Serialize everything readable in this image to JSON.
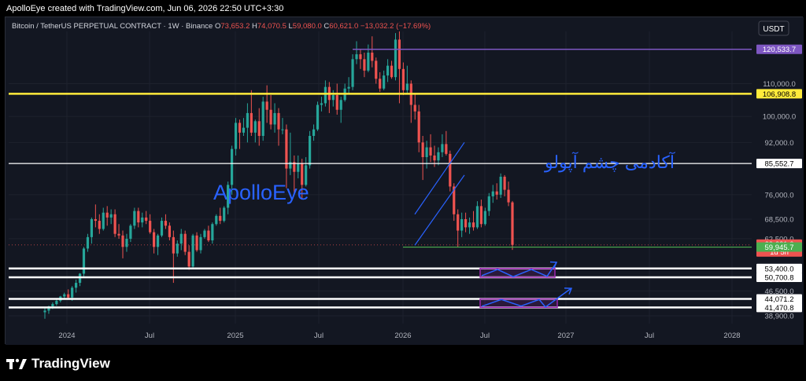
{
  "header": {
    "text": "ApolloEye created with TradingView.com, Jun 06, 2026 22:50 UTC+3:30"
  },
  "legend": {
    "symbol": "Bitcoin / TetherUS PERPETUAL CONTRACT · 1W · Binance",
    "open_label": "O",
    "open": "73,653.2",
    "high_label": "H",
    "high": "74,070.5",
    "low_label": "L",
    "low": "59,080.0",
    "close_label": "C",
    "close": "60,621.0",
    "change": "−13,032.2 (−17.69%)"
  },
  "currency_button": "USDT",
  "footer": {
    "brand": "TradingView"
  },
  "colors": {
    "bg": "#131722",
    "up": "#26a69a",
    "down": "#ef5350",
    "purple": "#7e57c2",
    "yellow": "#ffeb3b",
    "green": "#4caf50",
    "blue": "#2962ff",
    "grid": "#1e222d"
  },
  "chart_data": {
    "type": "candlestick",
    "ylim": [
      36500,
      126000
    ],
    "y_ticks": [
      "110,000.0",
      "100,000.0",
      "92,000.0",
      "76,000.0",
      "68,500.0",
      "62,500.0",
      "46,500.0",
      "38,900.0"
    ],
    "x_ticks": [
      "2024",
      "Jul",
      "2025",
      "Jul",
      "2026",
      "Jul",
      "2027",
      "Jul",
      "2028"
    ],
    "price_labels": [
      {
        "value": "120,533.7",
        "kind": "purple"
      },
      {
        "value": "106,908.8",
        "kind": "yellow"
      },
      {
        "value": "85,552.7",
        "kind": "white"
      },
      {
        "value": "60,621.0",
        "kind": "red",
        "sub": "1d 5h"
      },
      {
        "value": "59,945.7",
        "kind": "green"
      },
      {
        "value": "53,400.0",
        "kind": "white"
      },
      {
        "value": "50,700.8",
        "kind": "white"
      },
      {
        "value": "44,071.2",
        "kind": "white"
      },
      {
        "value": "41,470.8",
        "kind": "white"
      }
    ],
    "horizontal_levels": [
      {
        "value": 120533.7,
        "kind": "purple"
      },
      {
        "value": 106908.8,
        "kind": "yellow"
      },
      {
        "value": 85552.7,
        "kind": "white"
      },
      {
        "value": 59945.7,
        "kind": "green"
      },
      {
        "value": 53400.0,
        "kind": "white"
      },
      {
        "value": 50700.8,
        "kind": "white"
      },
      {
        "value": 44071.2,
        "kind": "white"
      },
      {
        "value": 41470.8,
        "kind": "white"
      }
    ],
    "ohlc_weekly": [
      [
        40000,
        41500,
        38000,
        40500
      ],
      [
        40500,
        42000,
        39500,
        41800
      ],
      [
        41800,
        43000,
        41000,
        42500
      ],
      [
        42500,
        44000,
        42000,
        43500
      ],
      [
        43500,
        45000,
        43000,
        44800
      ],
      [
        44800,
        46000,
        44000,
        45500
      ],
      [
        45500,
        47000,
        44000,
        44500
      ],
      [
        44500,
        48000,
        43500,
        47500
      ],
      [
        47500,
        50000,
        46000,
        49000
      ],
      [
        49000,
        52000,
        48000,
        51800
      ],
      [
        51800,
        60000,
        51000,
        59500
      ],
      [
        59500,
        64000,
        58500,
        63000
      ],
      [
        63000,
        69000,
        61000,
        68500
      ],
      [
        68500,
        73000,
        66000,
        68000
      ],
      [
        68000,
        70000,
        64000,
        65500
      ],
      [
        65500,
        72000,
        65000,
        70500
      ],
      [
        70500,
        72500,
        66500,
        69000
      ],
      [
        69000,
        71500,
        67000,
        70000
      ],
      [
        70000,
        71500,
        63000,
        64000
      ],
      [
        64000,
        67000,
        62500,
        63500
      ],
      [
        63500,
        65000,
        56500,
        60000
      ],
      [
        60000,
        64000,
        58500,
        62500
      ],
      [
        62500,
        67000,
        61500,
        66500
      ],
      [
        66500,
        72000,
        65500,
        71000
      ],
      [
        71000,
        72000,
        66000,
        67500
      ],
      [
        67500,
        70500,
        66000,
        69000
      ],
      [
        69000,
        71000,
        67000,
        68000
      ],
      [
        68000,
        70000,
        64000,
        64500
      ],
      [
        64500,
        65500,
        58000,
        60000
      ],
      [
        60000,
        64000,
        57500,
        63500
      ],
      [
        63500,
        69000,
        63000,
        68000
      ],
      [
        68000,
        70000,
        65500,
        66500
      ],
      [
        66500,
        67500,
        62000,
        63000
      ],
      [
        63000,
        65000,
        49000,
        58000
      ],
      [
        58000,
        62000,
        57000,
        61000
      ],
      [
        61000,
        65500,
        59000,
        64000
      ],
      [
        64000,
        65000,
        57500,
        58500
      ],
      [
        58500,
        60500,
        53000,
        54000
      ],
      [
        54000,
        64000,
        53500,
        63500
      ],
      [
        63500,
        64500,
        58500,
        59000
      ],
      [
        59000,
        64000,
        58000,
        63000
      ],
      [
        63000,
        65500,
        62500,
        65000
      ],
      [
        65000,
        66500,
        61500,
        62000
      ],
      [
        62000,
        67500,
        61000,
        67000
      ],
      [
        67000,
        70000,
        66500,
        69500
      ],
      [
        69500,
        72000,
        67000,
        68000
      ],
      [
        68000,
        72500,
        67500,
        72000
      ],
      [
        72000,
        80000,
        70000,
        79000
      ],
      [
        79000,
        91000,
        76000,
        90000
      ],
      [
        90000,
        99500,
        88000,
        98000
      ],
      [
        98000,
        99000,
        90000,
        95000
      ],
      [
        95000,
        99500,
        94000,
        96500
      ],
      [
        96500,
        104000,
        92000,
        101000
      ],
      [
        101000,
        108000,
        94000,
        95000
      ],
      [
        95000,
        99000,
        92000,
        98500
      ],
      [
        98500,
        102500,
        91000,
        94000
      ],
      [
        94000,
        106000,
        92500,
        104500
      ],
      [
        104500,
        109500,
        98000,
        102000
      ],
      [
        102000,
        106500,
        96000,
        97500
      ],
      [
        97500,
        104000,
        95000,
        101000
      ],
      [
        101000,
        102500,
        91000,
        96000
      ],
      [
        96000,
        99500,
        94500,
        96000
      ],
      [
        96000,
        97500,
        78000,
        84000
      ],
      [
        84000,
        95000,
        82000,
        86000
      ],
      [
        86000,
        88000,
        76500,
        83000
      ],
      [
        83000,
        88000,
        81000,
        85500
      ],
      [
        85500,
        87000,
        74500,
        79000
      ],
      [
        79000,
        87500,
        78500,
        85000
      ],
      [
        85000,
        95500,
        84000,
        94000
      ],
      [
        94000,
        97500,
        92500,
        96000
      ],
      [
        96000,
        104500,
        95500,
        103500
      ],
      [
        103500,
        106000,
        101500,
        104000
      ],
      [
        104000,
        111000,
        103000,
        109000
      ],
      [
        109000,
        110500,
        101000,
        105000
      ],
      [
        105000,
        108000,
        103000,
        106500
      ],
      [
        106500,
        110000,
        100500,
        102000
      ],
      [
        102000,
        106000,
        98000,
        105000
      ],
      [
        105000,
        110000,
        104500,
        108500
      ],
      [
        108500,
        112000,
        107000,
        109000
      ],
      [
        109000,
        119000,
        108000,
        117500
      ],
      [
        117500,
        123000,
        116000,
        119000
      ],
      [
        119000,
        120500,
        114500,
        117500
      ],
      [
        117500,
        119500,
        112000,
        114000
      ],
      [
        114000,
        122000,
        113500,
        119500
      ],
      [
        119500,
        124500,
        115000,
        117000
      ],
      [
        117000,
        118000,
        110000,
        111500
      ],
      [
        111500,
        113500,
        107500,
        108500
      ],
      [
        108500,
        114000,
        108000,
        112500
      ],
      [
        112500,
        117500,
        110500,
        115500
      ],
      [
        115500,
        117000,
        111500,
        112000
      ],
      [
        112000,
        125500,
        111000,
        123500
      ],
      [
        123500,
        126000,
        104000,
        114500
      ],
      [
        114500,
        116500,
        106500,
        108000
      ],
      [
        108000,
        115500,
        107000,
        110000
      ],
      [
        110000,
        111000,
        98000,
        103500
      ],
      [
        103500,
        107000,
        99000,
        101500
      ],
      [
        101500,
        103500,
        89000,
        92000
      ],
      [
        92000,
        94000,
        80500,
        87500
      ],
      [
        87500,
        92500,
        84000,
        90500
      ],
      [
        90500,
        94500,
        86000,
        88000
      ],
      [
        88000,
        91000,
        84500,
        86500
      ],
      [
        86500,
        90500,
        85000,
        89000
      ],
      [
        89000,
        94500,
        87500,
        91500
      ],
      [
        91500,
        95500,
        88000,
        88500
      ],
      [
        88500,
        89500,
        77000,
        78500
      ],
      [
        78500,
        79500,
        68000,
        70000
      ],
      [
        70000,
        71500,
        60000,
        65000
      ],
      [
        65000,
        70500,
        63000,
        68500
      ],
      [
        68500,
        70500,
        64500,
        66000
      ],
      [
        66000,
        69000,
        64000,
        67500
      ],
      [
        67500,
        71000,
        65000,
        66000
      ],
      [
        66000,
        74000,
        65500,
        72500
      ],
      [
        72500,
        74500,
        66000,
        67000
      ],
      [
        67000,
        72000,
        66500,
        71000
      ],
      [
        71000,
        76500,
        69500,
        75500
      ],
      [
        75500,
        79000,
        73500,
        77000
      ],
      [
        77000,
        79500,
        74500,
        76000
      ],
      [
        76000,
        82500,
        75000,
        81500
      ],
      [
        81500,
        82000,
        75500,
        77500
      ],
      [
        77500,
        80000,
        72500,
        73650
      ],
      [
        73650,
        74070,
        59080,
        60621
      ]
    ]
  },
  "annotations": {
    "brand_text": "ApolloEye",
    "persian_text": "آکادمی چشم آپولو"
  }
}
